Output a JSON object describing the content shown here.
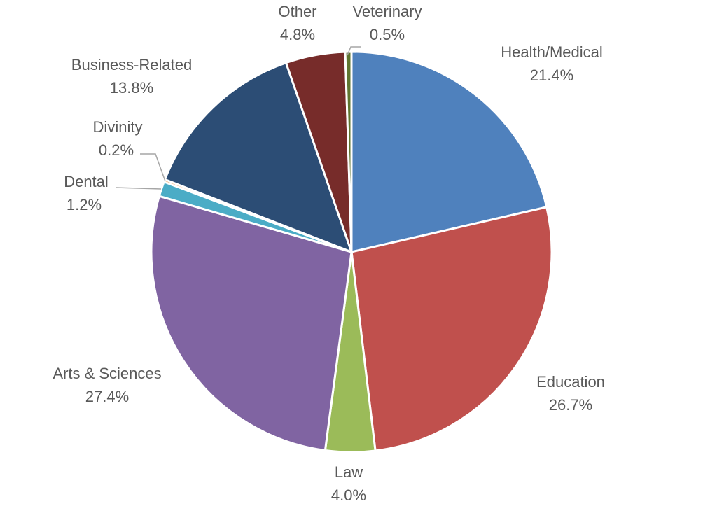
{
  "chart_data": {
    "type": "pie",
    "categories": [
      "Health/Medical",
      "Education",
      "Law",
      "Arts & Sciences",
      "Dental",
      "Divinity",
      "Business-Related",
      "Other",
      "Veterinary"
    ],
    "values": [
      21.4,
      26.7,
      4.0,
      27.4,
      1.2,
      0.2,
      13.8,
      4.8,
      0.5
    ],
    "value_labels": [
      "21.4%",
      "26.7%",
      "4.0%",
      "27.4%",
      "1.2%",
      "0.2%",
      "13.8%",
      "4.8%",
      "0.5%"
    ],
    "colors": [
      "#4F81BD",
      "#C0504D",
      "#9BBB59",
      "#8064A2",
      "#4BACC6",
      "#F79646",
      "#2C4D75",
      "#772C2A",
      "#5F7530"
    ],
    "unit": "%",
    "start": "12 o'clock",
    "direction": "clockwise"
  }
}
